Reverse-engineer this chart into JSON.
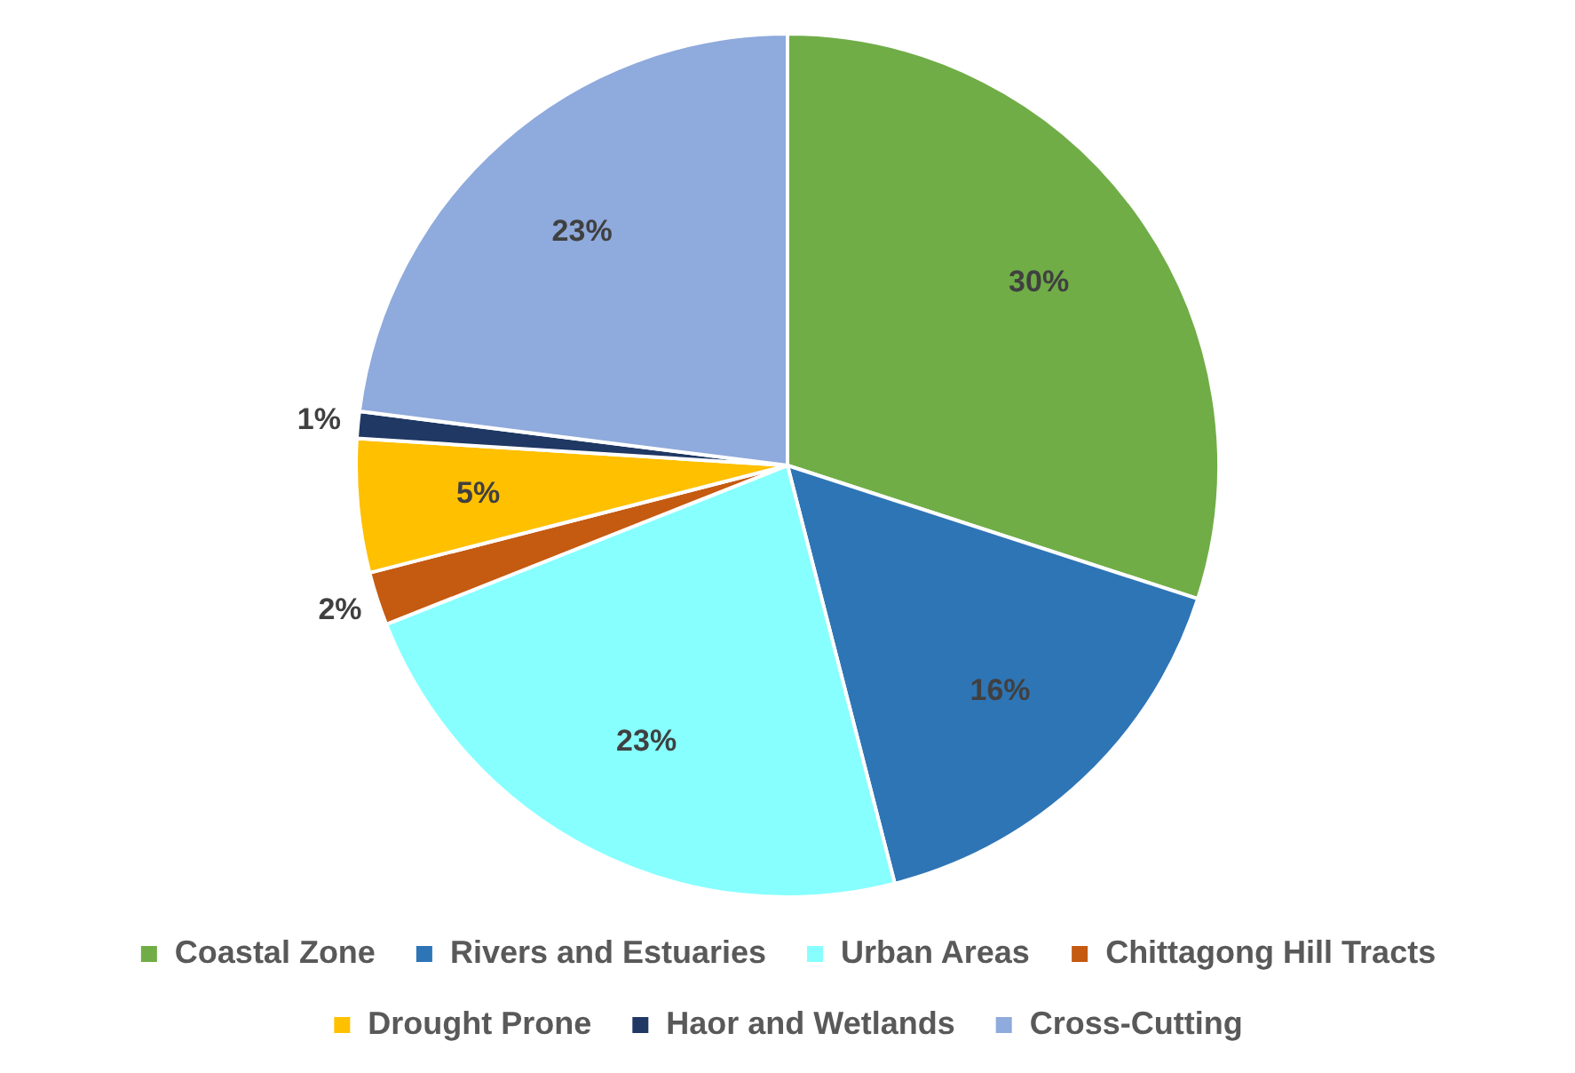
{
  "chart_data": {
    "type": "pie",
    "categories": [
      "Coastal Zone",
      "Rivers and Estuaries",
      "Urban Areas",
      "Chittagong Hill Tracts",
      "Drought Prone",
      "Haor and Wetlands",
      "Cross-Cutting"
    ],
    "values": [
      30,
      16,
      23,
      2,
      5,
      1,
      23
    ],
    "colors": [
      "#70ad47",
      "#2e75b6",
      "#87ffff",
      "#c55a11",
      "#ffc000",
      "#1f3864",
      "#8faadc"
    ],
    "value_labels": [
      "30%",
      "16%",
      "23%",
      "2%",
      "5%",
      "1%",
      "23%"
    ],
    "legend": "bottom"
  }
}
